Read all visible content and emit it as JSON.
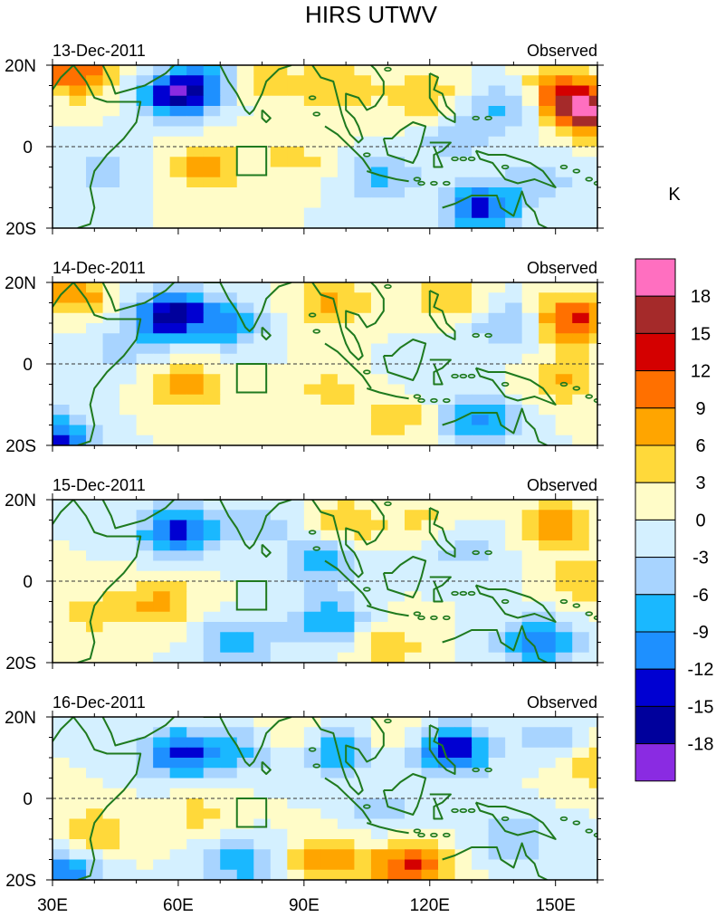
{
  "chart_data": {
    "type": "heatmap",
    "title": "HIRS UTWV",
    "colorbar": {
      "unit_label": "K",
      "tick_labels": [
        "18",
        "15",
        "12",
        "9",
        "6",
        "3",
        "0",
        "-3",
        "-6",
        "-9",
        "-12",
        "-15",
        "-18"
      ],
      "colors": [
        "#ff6fc0",
        "#a52a2a",
        "#d40000",
        "#ff7000",
        "#ffa500",
        "#ffd93a",
        "#fffcc8",
        "#d4f0ff",
        "#a8d4ff",
        "#1ab8ff",
        "#1e90ff",
        "#0000d2",
        "#00009c",
        "#8a2be2"
      ],
      "range": [
        -21,
        21
      ],
      "interval": 3
    },
    "x_axis": {
      "range": [
        30,
        160
      ],
      "ticks": [
        30,
        60,
        90,
        120,
        150
      ],
      "tick_labels": [
        "30E",
        "60E",
        "90E",
        "120E",
        "150E"
      ]
    },
    "y_axis": {
      "range": [
        -20,
        20
      ],
      "ticks": [
        20,
        0,
        -20
      ],
      "tick_labels": [
        "20N",
        "0",
        "20S"
      ]
    },
    "box_region": {
      "lon": [
        74,
        81
      ],
      "lat": [
        -7,
        0
      ]
    },
    "panels": [
      {
        "date": "13-Dec-2011",
        "label": "Observed",
        "anomalies": [
          {
            "lon": 36,
            "lat": 18,
            "value": 12
          },
          {
            "lon": 60,
            "lat": 13,
            "value": -16
          },
          {
            "lon": 68,
            "lat": 16,
            "value": -6
          },
          {
            "lon": 80,
            "lat": 16,
            "value": 5
          },
          {
            "lon": 98,
            "lat": 15,
            "value": 6
          },
          {
            "lon": 118,
            "lat": 12,
            "value": 6
          },
          {
            "lon": 158,
            "lat": 9,
            "value": 19
          },
          {
            "lon": 150,
            "lat": 14,
            "value": 8
          },
          {
            "lon": 138,
            "lat": 10,
            "value": -7
          },
          {
            "lon": 66,
            "lat": -5,
            "value": 7
          },
          {
            "lon": 88,
            "lat": -3,
            "value": 4
          },
          {
            "lon": 108,
            "lat": -8,
            "value": -7
          },
          {
            "lon": 132,
            "lat": -15,
            "value": -13
          },
          {
            "lon": 146,
            "lat": -8,
            "value": -5
          },
          {
            "lon": 42,
            "lat": -6,
            "value": -4
          },
          {
            "lon": 126,
            "lat": 2,
            "value": -5
          }
        ]
      },
      {
        "date": "14-Dec-2011",
        "label": "Observed",
        "anomalies": [
          {
            "lon": 36,
            "lat": 17,
            "value": 8
          },
          {
            "lon": 58,
            "lat": 12,
            "value": -16
          },
          {
            "lon": 72,
            "lat": 10,
            "value": -9
          },
          {
            "lon": 96,
            "lat": 15,
            "value": 7
          },
          {
            "lon": 126,
            "lat": 16,
            "value": 6
          },
          {
            "lon": 154,
            "lat": 11,
            "value": 13
          },
          {
            "lon": 138,
            "lat": 10,
            "value": -7
          },
          {
            "lon": 62,
            "lat": -5,
            "value": 7
          },
          {
            "lon": 96,
            "lat": -6,
            "value": 4
          },
          {
            "lon": 112,
            "lat": -13,
            "value": 5
          },
          {
            "lon": 132,
            "lat": -14,
            "value": -10
          },
          {
            "lon": 152,
            "lat": -4,
            "value": 6
          },
          {
            "lon": 31,
            "lat": -18,
            "value": -13
          },
          {
            "lon": 46,
            "lat": 4,
            "value": -4
          },
          {
            "lon": 120,
            "lat": -2,
            "value": -3
          }
        ]
      },
      {
        "date": "15-Dec-2011",
        "label": "Observed",
        "anomalies": [
          {
            "lon": 60,
            "lat": 12,
            "value": -14
          },
          {
            "lon": 80,
            "lat": 14,
            "value": -4
          },
          {
            "lon": 100,
            "lat": 14,
            "value": 6
          },
          {
            "lon": 120,
            "lat": 15,
            "value": 4
          },
          {
            "lon": 150,
            "lat": 14,
            "value": 8
          },
          {
            "lon": 128,
            "lat": 8,
            "value": -5
          },
          {
            "lon": 95,
            "lat": 5,
            "value": -8
          },
          {
            "lon": 56,
            "lat": -5,
            "value": 7
          },
          {
            "lon": 40,
            "lat": -8,
            "value": 4
          },
          {
            "lon": 96,
            "lat": -10,
            "value": -9
          },
          {
            "lon": 110,
            "lat": -16,
            "value": 5
          },
          {
            "lon": 146,
            "lat": -15,
            "value": -12
          },
          {
            "lon": 74,
            "lat": -15,
            "value": -8
          },
          {
            "lon": 158,
            "lat": 0,
            "value": 6
          }
        ]
      },
      {
        "date": "16-Dec-2011",
        "label": "Observed",
        "anomalies": [
          {
            "lon": 60,
            "lat": 11,
            "value": -13
          },
          {
            "lon": 75,
            "lat": 12,
            "value": -7
          },
          {
            "lon": 98,
            "lat": 12,
            "value": -9
          },
          {
            "lon": 125,
            "lat": 12,
            "value": -15
          },
          {
            "lon": 150,
            "lat": 14,
            "value": -6
          },
          {
            "lon": 86,
            "lat": 16,
            "value": 5
          },
          {
            "lon": 112,
            "lat": 16,
            "value": 4
          },
          {
            "lon": 158,
            "lat": 9,
            "value": 7
          },
          {
            "lon": 40,
            "lat": -8,
            "value": 6
          },
          {
            "lon": 65,
            "lat": -4,
            "value": 4
          },
          {
            "lon": 115,
            "lat": -17,
            "value": 13
          },
          {
            "lon": 95,
            "lat": -15,
            "value": 8
          },
          {
            "lon": 140,
            "lat": -10,
            "value": -6
          },
          {
            "lon": 75,
            "lat": -16,
            "value": -8
          },
          {
            "lon": 32,
            "lat": -19,
            "value": -12
          },
          {
            "lon": 108,
            "lat": -3,
            "value": -4
          }
        ]
      }
    ]
  }
}
